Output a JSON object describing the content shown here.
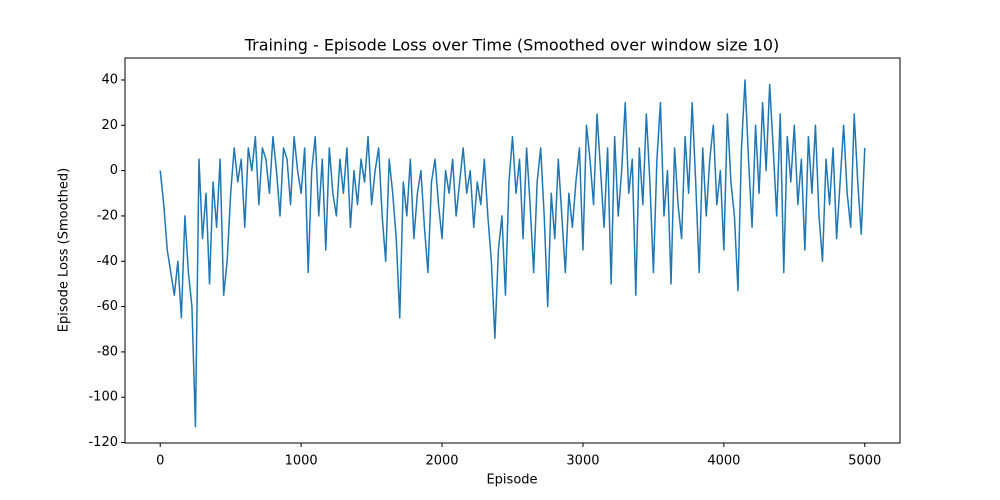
{
  "chart_data": {
    "type": "line",
    "title": "Training - Episode Loss over Time (Smoothed over window size 10)",
    "x_label": "Episode",
    "y_label": "Episode Loss (Smoothed)",
    "xlim": [
      -250,
      5250
    ],
    "ylim": [
      -120.2,
      49.7
    ],
    "xticks": [
      0,
      1000,
      2000,
      3000,
      4000,
      5000
    ],
    "yticks": [
      -120,
      -100,
      -80,
      -60,
      -40,
      -20,
      0,
      20,
      40
    ],
    "grid": false,
    "color": "#1f77b4",
    "x": [
      0,
      25,
      50,
      75,
      100,
      125,
      150,
      175,
      200,
      225,
      250,
      275,
      300,
      325,
      350,
      375,
      400,
      425,
      450,
      475,
      500,
      525,
      550,
      575,
      600,
      625,
      650,
      675,
      700,
      725,
      750,
      775,
      800,
      825,
      850,
      875,
      900,
      925,
      950,
      975,
      1000,
      1025,
      1050,
      1075,
      1100,
      1125,
      1150,
      1175,
      1200,
      1225,
      1250,
      1275,
      1300,
      1325,
      1350,
      1375,
      1400,
      1425,
      1450,
      1475,
      1500,
      1525,
      1550,
      1575,
      1600,
      1625,
      1650,
      1675,
      1700,
      1725,
      1750,
      1775,
      1800,
      1825,
      1850,
      1875,
      1900,
      1925,
      1950,
      1975,
      2000,
      2025,
      2050,
      2075,
      2100,
      2125,
      2150,
      2175,
      2200,
      2225,
      2250,
      2275,
      2300,
      2325,
      2350,
      2375,
      2400,
      2425,
      2450,
      2475,
      2500,
      2525,
      2550,
      2575,
      2600,
      2625,
      2650,
      2675,
      2700,
      2725,
      2750,
      2775,
      2800,
      2825,
      2850,
      2875,
      2900,
      2925,
      2950,
      2975,
      3000,
      3025,
      3050,
      3075,
      3100,
      3125,
      3150,
      3175,
      3200,
      3225,
      3250,
      3275,
      3300,
      3325,
      3350,
      3375,
      3400,
      3425,
      3450,
      3475,
      3500,
      3525,
      3550,
      3575,
      3600,
      3625,
      3650,
      3675,
      3700,
      3725,
      3750,
      3775,
      3800,
      3825,
      3850,
      3875,
      3900,
      3925,
      3950,
      3975,
      4000,
      4025,
      4050,
      4075,
      4100,
      4125,
      4150,
      4175,
      4200,
      4225,
      4250,
      4275,
      4300,
      4325,
      4350,
      4375,
      4400,
      4425,
      4450,
      4475,
      4500,
      4525,
      4550,
      4575,
      4600,
      4625,
      4650,
      4675,
      4700,
      4725,
      4750,
      4775,
      4800,
      4825,
      4850,
      4875,
      4900,
      4925,
      4950,
      4975,
      5000
    ],
    "values": [
      0,
      -15,
      -35,
      -45,
      -55,
      -40,
      -65,
      -20,
      -45,
      -60,
      -113,
      5,
      -30,
      -10,
      -50,
      -5,
      -25,
      5,
      -55,
      -40,
      -10,
      10,
      -5,
      5,
      -25,
      10,
      0,
      15,
      -15,
      10,
      5,
      -10,
      15,
      0,
      -20,
      10,
      5,
      -15,
      15,
      0,
      -10,
      10,
      -45,
      0,
      15,
      -20,
      5,
      -35,
      10,
      -10,
      -20,
      5,
      -10,
      10,
      -25,
      0,
      -15,
      5,
      -5,
      15,
      -15,
      0,
      10,
      -20,
      -40,
      5,
      -10,
      -30,
      -65,
      -5,
      -20,
      5,
      -30,
      -10,
      0,
      -25,
      -45,
      -5,
      5,
      -15,
      -30,
      0,
      -10,
      5,
      -20,
      -5,
      10,
      -10,
      0,
      -25,
      -5,
      -15,
      5,
      -20,
      -40,
      -74,
      -35,
      -20,
      -55,
      -5,
      15,
      -10,
      5,
      -30,
      10,
      -15,
      -45,
      -5,
      10,
      -20,
      -60,
      -10,
      -30,
      5,
      -20,
      -45,
      -10,
      -25,
      -5,
      10,
      -35,
      20,
      5,
      -15,
      25,
      0,
      -25,
      10,
      -50,
      15,
      -20,
      0,
      30,
      -10,
      5,
      -55,
      10,
      -15,
      25,
      -5,
      -45,
      5,
      30,
      -20,
      0,
      -50,
      10,
      -15,
      -30,
      15,
      -10,
      30,
      -5,
      -45,
      10,
      -20,
      5,
      20,
      -15,
      0,
      -35,
      25,
      -5,
      -20,
      -53,
      10,
      40,
      5,
      -25,
      20,
      -10,
      30,
      0,
      38,
      10,
      -20,
      25,
      -45,
      15,
      -5,
      20,
      -15,
      5,
      -35,
      15,
      -10,
      20,
      -20,
      -40,
      5,
      -15,
      10,
      -30,
      -5,
      20,
      -10,
      -25,
      25,
      -5,
      -28,
      10
    ]
  }
}
